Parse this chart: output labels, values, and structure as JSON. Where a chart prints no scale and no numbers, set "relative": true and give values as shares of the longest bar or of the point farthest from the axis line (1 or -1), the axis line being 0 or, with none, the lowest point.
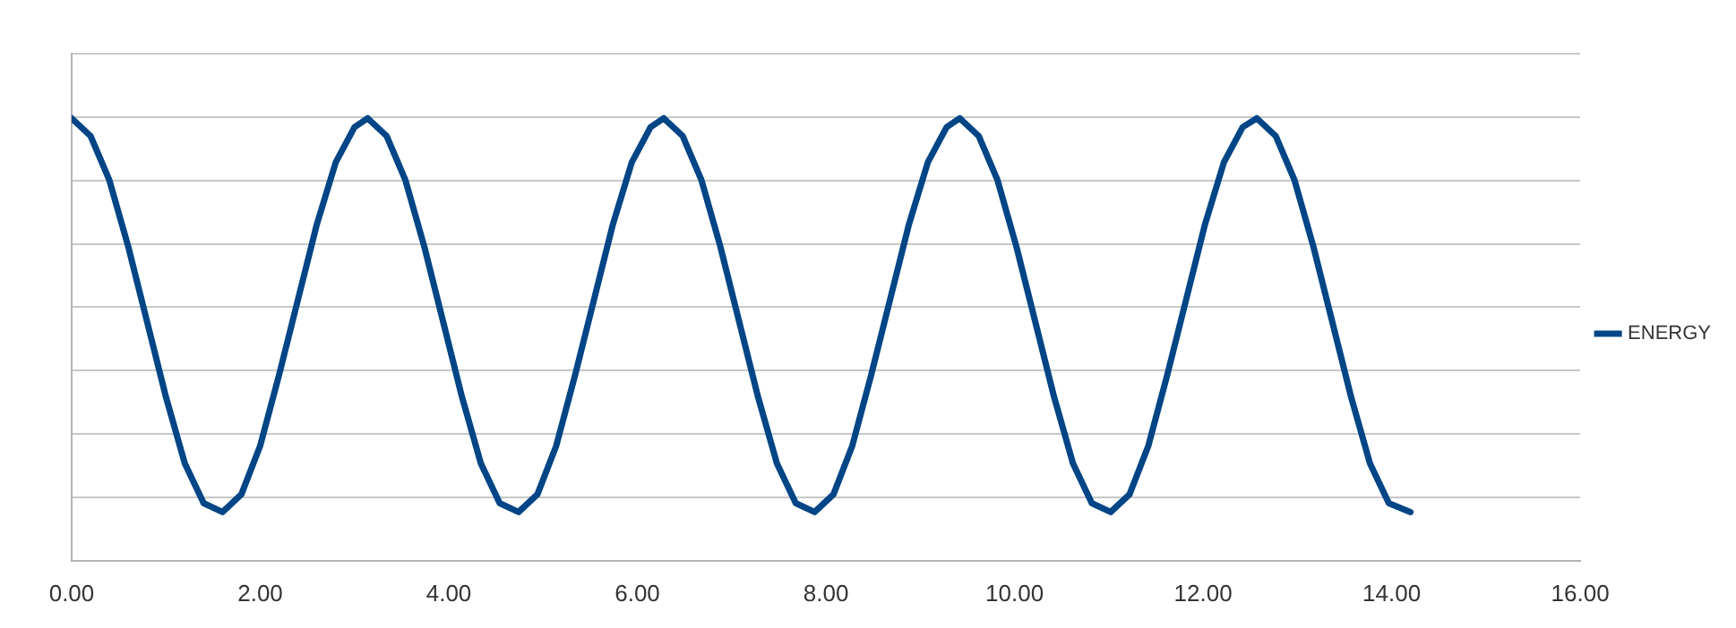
{
  "chart_data": {
    "type": "line",
    "relative": true,
    "xlim": [
      0,
      16
    ],
    "xticks": [
      {
        "value": 0,
        "label": "0.00"
      },
      {
        "value": 2,
        "label": "2.00"
      },
      {
        "value": 4,
        "label": "4.00"
      },
      {
        "value": 6,
        "label": "6.00"
      },
      {
        "value": 8,
        "label": "8.00"
      },
      {
        "value": 10,
        "label": "10.00"
      },
      {
        "value": 12,
        "label": "12.00"
      },
      {
        "value": 14,
        "label": "14.00"
      },
      {
        "value": 16,
        "label": "16.00"
      }
    ],
    "grid": "y",
    "legend": "right",
    "tick_labels": "x",
    "marker": "none",
    "line_style": "solid",
    "x": [
      0,
      0.2,
      0.4,
      0.6,
      0.8,
      1.0,
      1.2,
      1.4,
      1.6,
      1.8,
      2.0,
      2.2,
      2.4,
      2.6,
      2.8,
      3.0,
      3.14,
      3.34,
      3.54,
      3.74,
      3.94,
      4.14,
      4.34,
      4.54,
      4.74,
      4.94,
      5.14,
      5.34,
      5.54,
      5.74,
      5.94,
      6.14,
      6.28,
      6.48,
      6.68,
      6.88,
      7.08,
      7.28,
      7.48,
      7.68,
      7.88,
      8.08,
      8.28,
      8.48,
      8.68,
      8.88,
      9.08,
      9.28,
      9.42,
      9.62,
      9.82,
      10.02,
      10.22,
      10.42,
      10.62,
      10.82,
      11.02,
      11.22,
      11.42,
      11.62,
      11.82,
      12.02,
      12.22,
      12.42,
      12.57,
      12.77,
      12.97,
      13.17,
      13.37,
      13.57,
      13.77,
      13.97,
      14.2
    ],
    "series": [
      {
        "name": "ENERGY",
        "color": "#004586",
        "values": [
          1,
          0.96,
          0.86,
          0.71,
          0.54,
          0.37,
          0.22,
          0.13,
          0.11,
          0.15,
          0.26,
          0.42,
          0.59,
          0.76,
          0.9,
          0.98,
          1,
          0.96,
          0.86,
          0.71,
          0.54,
          0.37,
          0.22,
          0.13,
          0.11,
          0.15,
          0.26,
          0.42,
          0.59,
          0.76,
          0.9,
          0.98,
          1,
          0.96,
          0.86,
          0.71,
          0.54,
          0.37,
          0.22,
          0.13,
          0.11,
          0.15,
          0.26,
          0.42,
          0.59,
          0.76,
          0.9,
          0.98,
          1,
          0.96,
          0.86,
          0.71,
          0.54,
          0.37,
          0.22,
          0.13,
          0.11,
          0.15,
          0.26,
          0.42,
          0.59,
          0.76,
          0.9,
          0.98,
          1,
          0.96,
          0.86,
          0.71,
          0.54,
          0.37,
          0.22,
          0.13,
          0.11
        ]
      }
    ]
  }
}
